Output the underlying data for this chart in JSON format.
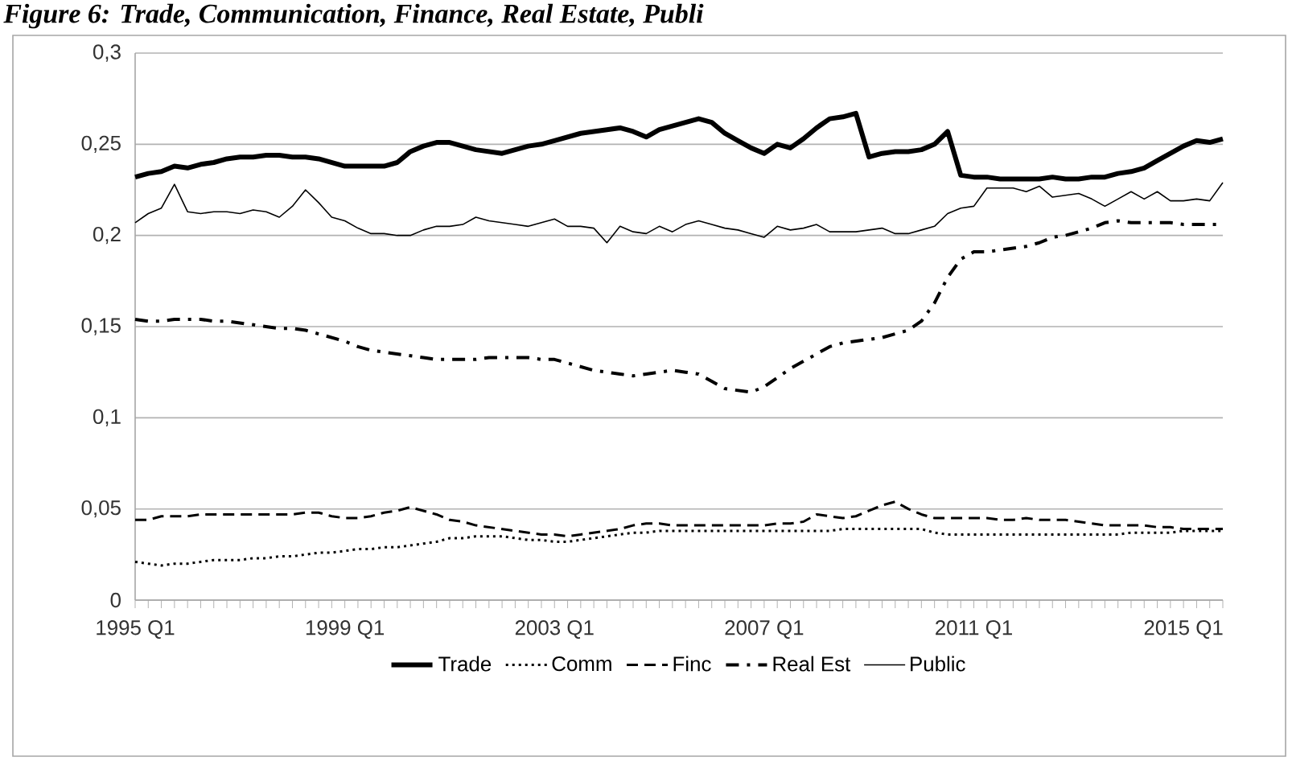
{
  "chart_data": {
    "type": "line",
    "title": "Figure 6: Trade, Communication, Finance, Real Estate, Publi",
    "categories": [
      "1995 Q1",
      null,
      null,
      null,
      null,
      null,
      null,
      null,
      null,
      null,
      null,
      null,
      null,
      null,
      null,
      null,
      "1999 Q1",
      null,
      null,
      null,
      null,
      null,
      null,
      null,
      null,
      null,
      null,
      null,
      null,
      null,
      null,
      null,
      "2003 Q1",
      null,
      null,
      null,
      null,
      null,
      null,
      null,
      null,
      null,
      null,
      null,
      null,
      null,
      null,
      null,
      "2007 Q1",
      null,
      null,
      null,
      null,
      null,
      null,
      null,
      null,
      null,
      null,
      null,
      null,
      null,
      null,
      null,
      "2011 Q1",
      null,
      null,
      null,
      null,
      null,
      null,
      null,
      null,
      null,
      null,
      null,
      null,
      null,
      null,
      null,
      "2015 Q1",
      null,
      null,
      null
    ],
    "ylim": [
      0,
      0.3
    ],
    "yticks": [
      0,
      {
        "value": 0.05,
        "label": "0,05"
      },
      {
        "value": 0.1,
        "label": "0,1"
      },
      {
        "value": 0.15,
        "label": "0,15"
      },
      {
        "value": 0.2,
        "label": "0,2"
      },
      {
        "value": 0.25,
        "label": "0,25"
      },
      {
        "value": 0.3,
        "label": "0,3"
      }
    ],
    "grid": "y",
    "legend": "bottom",
    "marker": "none",
    "series": [
      {
        "name": "Trade",
        "color": "#000000",
        "line_style": "solid",
        "values": [
          0.232,
          0.234,
          0.235,
          0.238,
          0.237,
          0.239,
          0.24,
          0.242,
          0.243,
          0.243,
          0.244,
          0.244,
          0.243,
          0.243,
          0.242,
          0.24,
          0.238,
          0.238,
          0.238,
          0.238,
          0.24,
          0.246,
          0.249,
          0.251,
          0.251,
          0.249,
          0.247,
          0.246,
          0.245,
          0.247,
          0.249,
          0.25,
          0.252,
          0.254,
          0.256,
          0.257,
          0.258,
          0.259,
          0.257,
          0.254,
          0.258,
          0.26,
          0.262,
          0.264,
          0.262,
          0.256,
          0.252,
          0.248,
          0.245,
          0.25,
          0.248,
          0.253,
          0.259,
          0.264,
          0.265,
          0.267,
          0.243,
          0.245,
          0.246,
          0.246,
          0.247,
          0.25,
          0.257,
          0.233,
          0.232,
          0.232,
          0.231,
          0.231,
          0.231,
          0.231,
          0.232,
          0.231,
          0.231,
          0.232,
          0.232,
          0.234,
          0.235,
          0.237,
          0.241,
          0.245,
          0.249,
          0.252,
          0.251,
          0.253
        ]
      },
      {
        "name": "Comm",
        "color": "#000000",
        "line_style": "dotted",
        "values": [
          0.021,
          0.02,
          0.019,
          0.02,
          0.02,
          0.021,
          0.022,
          0.022,
          0.022,
          0.023,
          0.023,
          0.024,
          0.024,
          0.025,
          0.026,
          0.026,
          0.027,
          0.028,
          0.028,
          0.029,
          0.029,
          0.03,
          0.031,
          0.032,
          0.034,
          0.034,
          0.035,
          0.035,
          0.035,
          0.034,
          0.033,
          0.033,
          0.032,
          0.032,
          0.033,
          0.034,
          0.035,
          0.036,
          0.037,
          0.037,
          0.038,
          0.038,
          0.038,
          0.038,
          0.038,
          0.038,
          0.038,
          0.038,
          0.038,
          0.038,
          0.038,
          0.038,
          0.038,
          0.038,
          0.039,
          0.039,
          0.039,
          0.039,
          0.039,
          0.039,
          0.039,
          0.037,
          0.036,
          0.036,
          0.036,
          0.036,
          0.036,
          0.036,
          0.036,
          0.036,
          0.036,
          0.036,
          0.036,
          0.036,
          0.036,
          0.036,
          0.037,
          0.037,
          0.037,
          0.037,
          0.038,
          0.038,
          0.038,
          0.038
        ]
      },
      {
        "name": "Finc",
        "color": "#000000",
        "line_style": "dashed",
        "values": [
          0.044,
          0.044,
          0.046,
          0.046,
          0.046,
          0.047,
          0.047,
          0.047,
          0.047,
          0.047,
          0.047,
          0.047,
          0.047,
          0.048,
          0.048,
          0.046,
          0.045,
          0.045,
          0.046,
          0.048,
          0.049,
          0.051,
          0.049,
          0.047,
          0.044,
          0.043,
          0.041,
          0.04,
          0.039,
          0.038,
          0.037,
          0.036,
          0.036,
          0.035,
          0.036,
          0.037,
          0.038,
          0.039,
          0.041,
          0.042,
          0.042,
          0.041,
          0.041,
          0.041,
          0.041,
          0.041,
          0.041,
          0.041,
          0.041,
          0.042,
          0.042,
          0.043,
          0.047,
          0.046,
          0.045,
          0.046,
          0.049,
          0.052,
          0.054,
          0.05,
          0.047,
          0.045,
          0.045,
          0.045,
          0.045,
          0.045,
          0.044,
          0.044,
          0.045,
          0.044,
          0.044,
          0.044,
          0.043,
          0.042,
          0.041,
          0.041,
          0.041,
          0.041,
          0.04,
          0.04,
          0.039,
          0.039,
          0.039,
          0.039
        ]
      },
      {
        "name": "Real Est",
        "color": "#000000",
        "line_style": "dashdot",
        "values": [
          0.154,
          0.153,
          0.153,
          0.154,
          0.154,
          0.154,
          0.153,
          0.153,
          0.152,
          0.151,
          0.15,
          0.149,
          0.149,
          0.148,
          0.146,
          0.144,
          0.142,
          0.139,
          0.137,
          0.136,
          0.135,
          0.134,
          0.133,
          0.132,
          0.132,
          0.132,
          0.132,
          0.133,
          0.133,
          0.133,
          0.133,
          0.132,
          0.132,
          0.13,
          0.128,
          0.126,
          0.125,
          0.124,
          0.123,
          0.124,
          0.125,
          0.126,
          0.125,
          0.124,
          0.12,
          0.116,
          0.115,
          0.114,
          0.117,
          0.122,
          0.127,
          0.131,
          0.135,
          0.139,
          0.141,
          0.142,
          0.143,
          0.144,
          0.146,
          0.148,
          0.153,
          0.163,
          0.177,
          0.187,
          0.191,
          0.191,
          0.192,
          0.193,
          0.194,
          0.196,
          0.199,
          0.2,
          0.202,
          0.204,
          0.207,
          0.208,
          0.207,
          0.207,
          0.207,
          0.207,
          0.206,
          0.206,
          0.206,
          0.206
        ]
      },
      {
        "name": "Public",
        "color": "#000000",
        "line_style": "solid",
        "values": [
          0.207,
          0.212,
          0.215,
          0.228,
          0.213,
          0.212,
          0.213,
          0.213,
          0.212,
          0.214,
          0.213,
          0.21,
          0.216,
          0.225,
          0.218,
          0.21,
          0.208,
          0.204,
          0.201,
          0.201,
          0.2,
          0.2,
          0.203,
          0.205,
          0.205,
          0.206,
          0.21,
          0.208,
          0.207,
          0.206,
          0.205,
          0.207,
          0.209,
          0.205,
          0.205,
          0.204,
          0.196,
          0.205,
          0.202,
          0.201,
          0.205,
          0.202,
          0.206,
          0.208,
          0.206,
          0.204,
          0.203,
          0.201,
          0.199,
          0.205,
          0.203,
          0.204,
          0.206,
          0.202,
          0.202,
          0.202,
          0.203,
          0.204,
          0.201,
          0.201,
          0.203,
          0.205,
          0.212,
          0.215,
          0.216,
          0.226,
          0.226,
          0.226,
          0.224,
          0.227,
          0.221,
          0.222,
          0.223,
          0.22,
          0.216,
          0.22,
          0.224,
          0.22,
          0.224,
          0.219,
          0.219,
          0.22,
          0.219,
          0.229
        ]
      }
    ]
  }
}
